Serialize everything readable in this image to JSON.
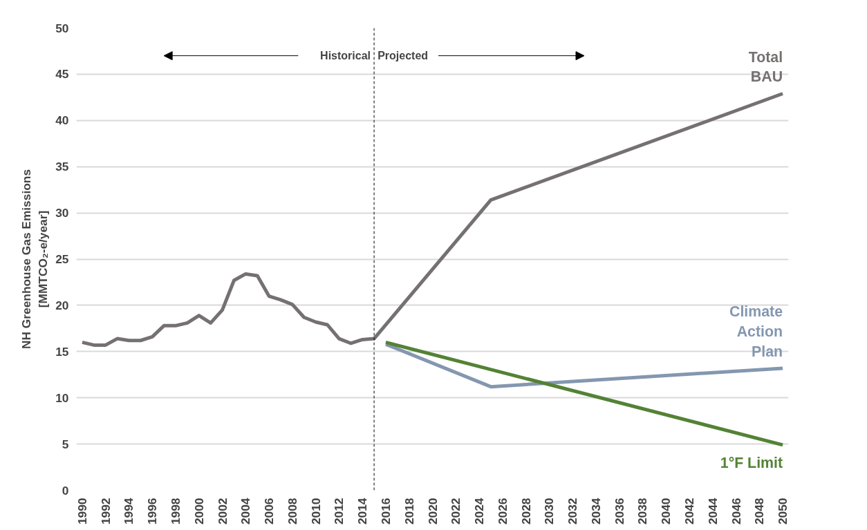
{
  "chart_data": {
    "type": "line",
    "ylabel": "NH Greenhouse Gas Emissions\n[MMTCO₂-e/year]",
    "xlim": [
      1989.5,
      2050.5
    ],
    "xticks": [
      1990,
      1992,
      1994,
      1996,
      1998,
      2000,
      2002,
      2004,
      2006,
      2008,
      2010,
      2012,
      2014,
      2016,
      2018,
      2020,
      2022,
      2024,
      2026,
      2028,
      2030,
      2032,
      2034,
      2036,
      2038,
      2040,
      2042,
      2044,
      2046,
      2048,
      2050
    ],
    "ylim": [
      0,
      50
    ],
    "yticks": [
      0,
      5,
      10,
      15,
      20,
      25,
      30,
      35,
      40,
      45,
      50
    ],
    "grid": "y",
    "series": [
      {
        "name": "Total BAU",
        "color": "#767171",
        "x": [
          1990,
          1991,
          1992,
          1993,
          1994,
          1995,
          1996,
          1997,
          1998,
          1999,
          2000,
          2001,
          2002,
          2003,
          2004,
          2005,
          2006,
          2007,
          2008,
          2009,
          2010,
          2011,
          2012,
          2013,
          2014,
          2015,
          2025,
          2050
        ],
        "values": [
          16.0,
          15.7,
          15.7,
          16.4,
          16.2,
          16.2,
          16.6,
          17.8,
          17.8,
          18.1,
          18.9,
          18.1,
          19.5,
          22.7,
          23.4,
          23.2,
          21.0,
          20.6,
          20.1,
          18.7,
          18.2,
          17.9,
          16.4,
          15.9,
          16.3,
          16.4,
          31.4,
          42.9
        ]
      },
      {
        "name": "Climate Action Plan",
        "color": "#8497b0",
        "x": [
          2016,
          2025,
          2050
        ],
        "values": [
          15.8,
          11.2,
          13.2
        ]
      },
      {
        "name": "1°F Limit",
        "color": "#548235",
        "x": [
          2016,
          2050
        ],
        "values": [
          16.0,
          4.9
        ]
      }
    ],
    "ref_lines": [
      {
        "axis": "x",
        "value": 2015,
        "label": null,
        "color": "#000000",
        "line_style": "dashed"
      }
    ],
    "annotations": [
      "Historical",
      "Projected"
    ]
  }
}
